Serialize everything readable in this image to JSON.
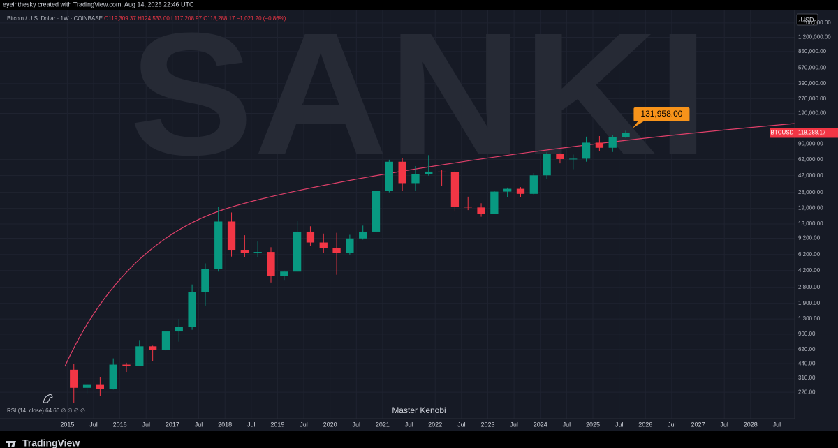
{
  "header": {
    "credit": "eyeinthesky created with TradingView.com, Aug 14, 2025 22:46 UTC",
    "symbol": "Bitcoin / U.S. Dollar · 1W · COINBASE",
    "open": "O119,309.37",
    "high": "H124,533.00",
    "low": "L117,208.97",
    "close": "C118,288.17",
    "change": "−1,021.20 (−0.86%)",
    "currency": "USD",
    "watermark": "SANKI",
    "indicator": "RSI (14, close)",
    "indicator_value": "64.66 ∅ ∅ ∅ ∅",
    "author": "Master Kenobi",
    "brand": "TradingView"
  },
  "chart_data": {
    "type": "candlestick",
    "log_scale": true,
    "up_color": "#089981",
    "down_color": "#f23645",
    "x": [
      2015.0,
      2015.25,
      2015.5,
      2015.75,
      2016.0,
      2016.25,
      2016.5,
      2016.75,
      2017.0,
      2017.25,
      2017.5,
      2017.75,
      2018.0,
      2018.25,
      2018.5,
      2018.75,
      2019.0,
      2019.25,
      2019.5,
      2019.75,
      2020.0,
      2020.25,
      2020.5,
      2020.75,
      2021.0,
      2021.25,
      2021.5,
      2021.75,
      2022.0,
      2022.25,
      2022.5,
      2022.75,
      2023.0,
      2023.25,
      2023.5,
      2023.75,
      2024.0,
      2024.25,
      2024.5,
      2024.75,
      2025.0,
      2025.25,
      2025.5
    ],
    "open": [
      380,
      245,
      263,
      236,
      430,
      416,
      670,
      610,
      960,
      1080,
      2500,
      4350,
      13800,
      6950,
      6400,
      6600,
      3700,
      4100,
      10800,
      8300,
      7200,
      6400,
      9150,
      10800,
      29000,
      58800,
      35000,
      43800,
      46300,
      45500,
      19800,
      19400,
      16500,
      28500,
      30500,
      27000,
      42300,
      71300,
      62700,
      63300,
      93400,
      82500,
      107200
    ],
    "high": [
      440,
      265,
      320,
      500,
      450,
      780,
      680,
      980,
      1300,
      3000,
      5000,
      19800,
      17200,
      9900,
      8500,
      7400,
      4200,
      13900,
      12300,
      10300,
      10500,
      10000,
      12500,
      29300,
      61800,
      64800,
      52900,
      69000,
      48200,
      47400,
      25200,
      21500,
      29200,
      31400,
      31800,
      44700,
      73800,
      72000,
      70000,
      108000,
      109500,
      111900,
      124533
    ],
    "low": [
      170,
      215,
      200,
      235,
      360,
      415,
      470,
      600,
      750,
      1000,
      1800,
      4100,
      5900,
      5800,
      5800,
      3150,
      3350,
      4100,
      7700,
      6500,
      3800,
      6200,
      8900,
      10400,
      28000,
      28800,
      29300,
      42000,
      32900,
      17600,
      18200,
      15500,
      16500,
      24800,
      24900,
      26600,
      38500,
      56500,
      49000,
      58900,
      76600,
      74500,
      105100
    ],
    "close": [
      245,
      263,
      236,
      430,
      416,
      670,
      610,
      960,
      1080,
      2500,
      4350,
      13800,
      6950,
      6400,
      6600,
      3700,
      4100,
      10800,
      8300,
      7200,
      6400,
      9150,
      10800,
      29000,
      58800,
      35000,
      43800,
      46300,
      45500,
      19800,
      19400,
      16500,
      28500,
      30500,
      27000,
      42300,
      71300,
      62700,
      63300,
      93400,
      82500,
      107200,
      118288.17
    ],
    "xlim": [
      2013.72,
      2028.84
    ],
    "ylim": [
      116,
      2340000
    ],
    "xticks": [
      2015,
      {
        "value": 2015.5,
        "label": "Jul"
      },
      2016,
      {
        "value": 2016.5,
        "label": "Jul"
      },
      2017,
      {
        "value": 2017.5,
        "label": "Jul"
      },
      2018,
      {
        "value": 2018.5,
        "label": "Jul"
      },
      2019,
      {
        "value": 2019.5,
        "label": "Jul"
      },
      2020,
      {
        "value": 2020.5,
        "label": "Jul"
      },
      2021,
      {
        "value": 2021.5,
        "label": "Jul"
      },
      2022,
      {
        "value": 2022.5,
        "label": "Jul"
      },
      2023,
      {
        "value": 2023.5,
        "label": "Jul"
      },
      2024,
      {
        "value": 2024.5,
        "label": "Jul"
      },
      2025,
      {
        "value": 2025.5,
        "label": "Jul"
      },
      2026,
      {
        "value": 2026.5,
        "label": "Jul"
      },
      2027,
      {
        "value": 2027.5,
        "label": "Jul"
      },
      2028,
      {
        "value": 2028.5,
        "label": "Jul"
      }
    ],
    "yticks": [
      {
        "value": 1700000,
        "label": "1,700,000.00"
      },
      {
        "value": 1200000,
        "label": "1,200,000.00"
      },
      {
        "value": 850000,
        "label": "850,000.00"
      },
      {
        "value": 570000,
        "label": "570,000.00"
      },
      {
        "value": 390000,
        "label": "390,000.00"
      },
      {
        "value": 270000,
        "label": "270,000.00"
      },
      {
        "value": 190000,
        "label": "190,000.00"
      },
      {
        "value": 90000,
        "label": "90,000.00"
      },
      {
        "value": 62000,
        "label": "62,000.00"
      },
      {
        "value": 42000,
        "label": "42,000.00"
      },
      {
        "value": 28000,
        "label": "28,000.00"
      },
      {
        "value": 19000,
        "label": "19,000.00"
      },
      {
        "value": 13000,
        "label": "13,000.00"
      },
      {
        "value": 9200,
        "label": "9,200.00"
      },
      {
        "value": 6200,
        "label": "6,200.00"
      },
      {
        "value": 4200,
        "label": "4,200.00"
      },
      {
        "value": 2800,
        "label": "2,800.00"
      },
      {
        "value": 1900,
        "label": "1,900.00"
      },
      {
        "value": 1300,
        "label": "1,300.00"
      },
      {
        "value": 900,
        "label": "900.00"
      },
      {
        "value": 620,
        "label": "620.00"
      },
      {
        "value": 440,
        "label": "440.00"
      },
      {
        "value": 310,
        "label": "310.00"
      },
      {
        "value": 220,
        "label": "220.00"
      }
    ],
    "grid": true,
    "last_price": {
      "name": "BTCUSD",
      "value": 118288.17,
      "label": "118,288.17"
    },
    "target": {
      "x": 2025.75,
      "value": 131958,
      "label": "131,958.00"
    }
  }
}
